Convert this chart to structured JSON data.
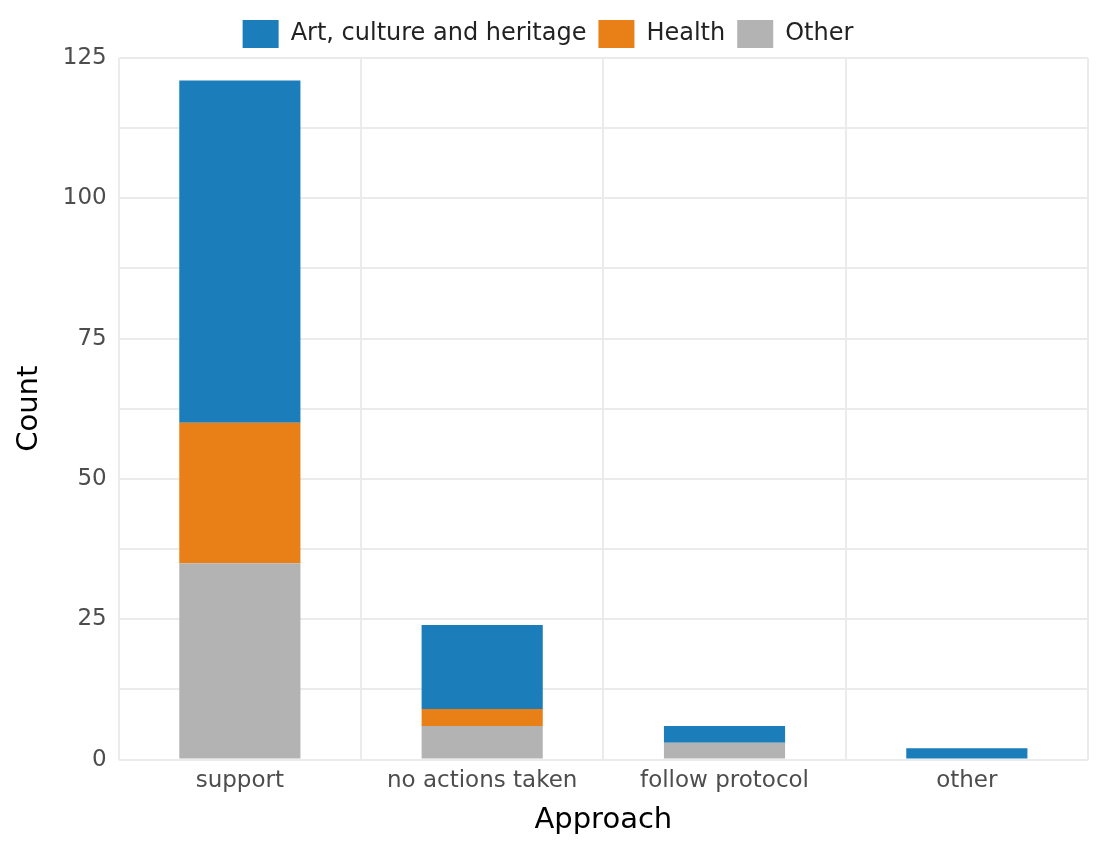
{
  "chart_data": {
    "type": "bar",
    "stacked": true,
    "xlabel": "Approach",
    "ylabel": "Count",
    "categories": [
      "support",
      "no actions taken",
      "follow protocol",
      "other"
    ],
    "series": [
      {
        "name": "Other",
        "color": "#b3b3b3",
        "values": [
          35,
          6,
          3,
          0
        ]
      },
      {
        "name": "Health",
        "color": "#e87f17",
        "values": [
          25,
          3,
          0,
          0
        ]
      },
      {
        "name": "Art, culture and heritage",
        "color": "#1b7eba",
        "values": [
          61,
          15,
          3,
          2
        ]
      }
    ],
    "ylim": [
      0,
      125
    ],
    "yticks": [
      0,
      {
        "value": 12.5,
        "label": null
      },
      25,
      {
        "value": 37.5,
        "label": null
      },
      50,
      {
        "value": 62.5,
        "label": null
      },
      75,
      {
        "value": 87.5,
        "label": null
      },
      100,
      {
        "value": 112.5,
        "label": null
      },
      125
    ],
    "grid": true,
    "legend": "top"
  }
}
